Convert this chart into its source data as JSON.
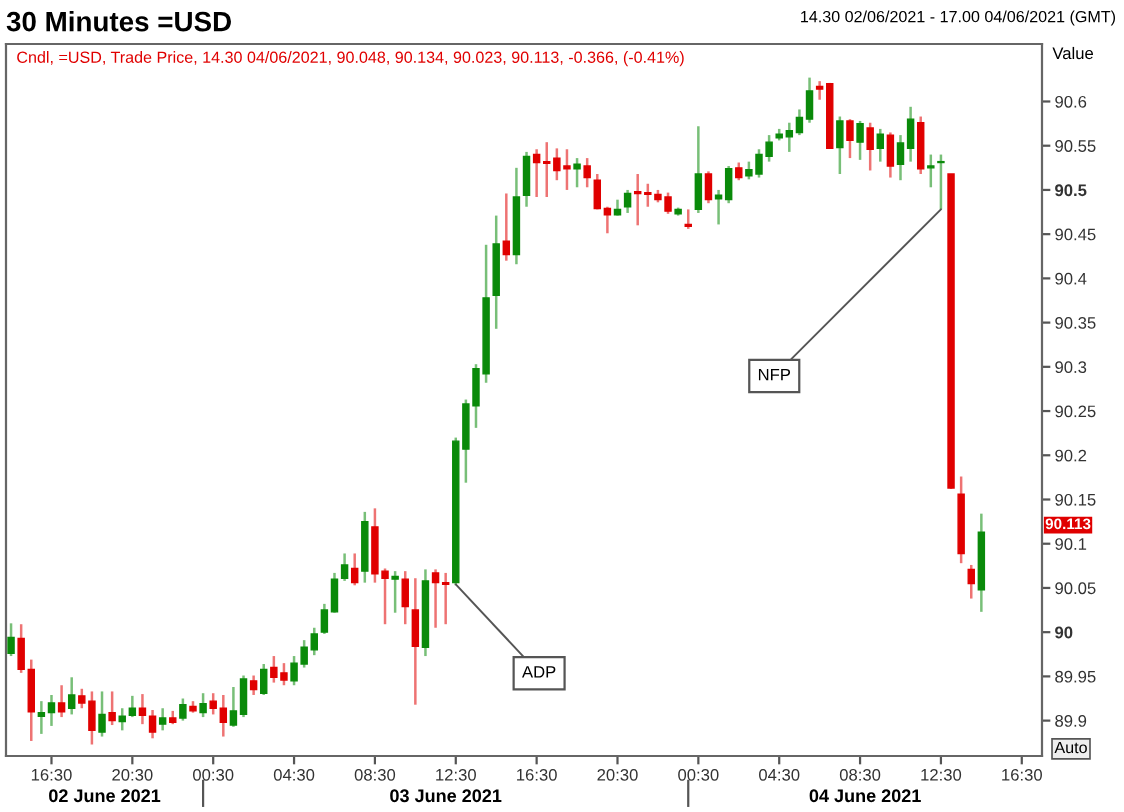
{
  "chart_data": {
    "type": "candlestick",
    "title": "30 Minutes =USD",
    "subtitle": "Cndl, =USD, Trade Price, 14.30 04/06/2021, 90.048, 90.134, 90.023, 90.113, -0.366, (-0.41%)",
    "ylabel": "Value",
    "x": [
      "2021-06-02T14:30",
      "2021-06-02T15:00",
      "2021-06-02T15:30",
      "2021-06-02T16:00",
      "2021-06-02T16:30",
      "2021-06-02T17:00",
      "2021-06-02T17:30",
      "2021-06-02T18:00",
      "2021-06-02T18:30",
      "2021-06-02T19:00",
      "2021-06-02T19:30",
      "2021-06-02T20:00",
      "2021-06-02T20:30",
      "2021-06-02T21:00",
      "2021-06-02T21:30",
      "2021-06-02T22:00",
      "2021-06-02T22:30",
      "2021-06-02T23:00",
      "2021-06-02T23:30",
      "2021-06-03T00:00",
      "2021-06-03T00:30",
      "2021-06-03T01:00",
      "2021-06-03T01:30",
      "2021-06-03T02:00",
      "2021-06-03T02:30",
      "2021-06-03T03:00",
      "2021-06-03T03:30",
      "2021-06-03T04:00",
      "2021-06-03T04:30",
      "2021-06-03T05:00",
      "2021-06-03T05:30",
      "2021-06-03T06:00",
      "2021-06-03T06:30",
      "2021-06-03T07:00",
      "2021-06-03T07:30",
      "2021-06-03T08:00",
      "2021-06-03T08:30",
      "2021-06-03T09:00",
      "2021-06-03T09:30",
      "2021-06-03T10:00",
      "2021-06-03T10:30",
      "2021-06-03T11:00",
      "2021-06-03T11:30",
      "2021-06-03T12:00",
      "2021-06-03T12:30",
      "2021-06-03T13:00",
      "2021-06-03T13:30",
      "2021-06-03T14:00",
      "2021-06-03T14:30",
      "2021-06-03T15:00",
      "2021-06-03T15:30",
      "2021-06-03T16:00",
      "2021-06-03T16:30",
      "2021-06-03T17:00",
      "2021-06-03T17:30",
      "2021-06-03T18:00",
      "2021-06-03T18:30",
      "2021-06-03T19:00",
      "2021-06-03T19:30",
      "2021-06-03T20:00",
      "2021-06-03T20:30",
      "2021-06-03T21:00",
      "2021-06-03T21:30",
      "2021-06-03T22:00",
      "2021-06-03T22:30",
      "2021-06-03T23:00",
      "2021-06-03T23:30",
      "2021-06-04T00:00",
      "2021-06-04T00:30",
      "2021-06-04T01:00",
      "2021-06-04T01:30",
      "2021-06-04T02:00",
      "2021-06-04T02:30",
      "2021-06-04T03:00",
      "2021-06-04T03:30",
      "2021-06-04T04:00",
      "2021-06-04T04:30",
      "2021-06-04T05:00",
      "2021-06-04T05:30",
      "2021-06-04T06:00",
      "2021-06-04T06:30",
      "2021-06-04T07:00",
      "2021-06-04T07:30",
      "2021-06-04T08:00",
      "2021-06-04T08:30",
      "2021-06-04T09:00",
      "2021-06-04T09:30",
      "2021-06-04T10:00",
      "2021-06-04T10:30",
      "2021-06-04T11:00",
      "2021-06-04T11:30",
      "2021-06-04T12:00",
      "2021-06-04T12:30",
      "2021-06-04T13:00",
      "2021-06-04T13:30",
      "2021-06-04T14:00",
      "2021-06-04T14:30"
    ],
    "ohlc": [
      [
        89.976,
        90.01,
        89.973,
        89.994
      ],
      [
        89.993,
        90.009,
        89.954,
        89.958
      ],
      [
        89.958,
        89.969,
        89.877,
        89.91
      ],
      [
        89.905,
        89.922,
        89.885,
        89.909
      ],
      [
        89.909,
        89.929,
        89.894,
        89.92
      ],
      [
        89.92,
        89.94,
        89.904,
        89.91
      ],
      [
        89.914,
        89.949,
        89.907,
        89.929
      ],
      [
        89.928,
        89.936,
        89.914,
        89.92
      ],
      [
        89.922,
        89.933,
        89.873,
        89.889
      ],
      [
        89.887,
        89.933,
        89.882,
        89.907
      ],
      [
        89.909,
        89.933,
        89.895,
        89.9
      ],
      [
        89.899,
        89.914,
        89.889,
        89.905
      ],
      [
        89.906,
        89.928,
        89.904,
        89.914
      ],
      [
        89.914,
        89.93,
        89.896,
        89.906
      ],
      [
        89.905,
        89.912,
        89.88,
        89.887
      ],
      [
        89.896,
        89.914,
        89.889,
        89.903
      ],
      [
        89.903,
        89.911,
        89.896,
        89.898
      ],
      [
        89.903,
        89.925,
        89.9,
        89.918
      ],
      [
        89.916,
        89.922,
        89.909,
        89.911
      ],
      [
        89.909,
        89.931,
        89.904,
        89.919
      ],
      [
        89.922,
        89.931,
        89.907,
        89.914
      ],
      [
        89.914,
        89.929,
        89.882,
        89.898
      ],
      [
        89.895,
        89.938,
        89.893,
        89.911
      ],
      [
        89.907,
        89.951,
        89.904,
        89.947
      ],
      [
        89.945,
        89.951,
        89.929,
        89.935
      ],
      [
        89.931,
        89.964,
        89.929,
        89.958
      ],
      [
        89.96,
        89.973,
        89.943,
        89.949
      ],
      [
        89.954,
        89.965,
        89.94,
        89.946
      ],
      [
        89.945,
        89.973,
        89.94,
        89.965
      ],
      [
        89.964,
        89.991,
        89.96,
        89.983
      ],
      [
        89.98,
        90.005,
        89.974,
        89.998
      ],
      [
        90.0,
        90.032,
        89.998,
        90.025
      ],
      [
        90.023,
        90.067,
        90.022,
        90.06
      ],
      [
        90.061,
        90.089,
        90.058,
        90.076
      ],
      [
        90.072,
        90.089,
        90.053,
        90.056
      ],
      [
        90.069,
        90.136,
        90.056,
        90.125
      ],
      [
        90.119,
        90.14,
        90.056,
        90.066
      ],
      [
        90.069,
        90.072,
        90.009,
        90.061
      ],
      [
        90.06,
        90.069,
        90.022,
        90.063
      ],
      [
        90.06,
        90.069,
        90.009,
        90.029
      ],
      [
        90.025,
        90.061,
        89.918,
        89.984
      ],
      [
        89.983,
        90.071,
        89.973,
        90.058
      ],
      [
        90.067,
        90.071,
        90.005,
        90.056
      ],
      [
        90.056,
        90.067,
        90.009,
        90.054
      ],
      [
        90.056,
        90.22,
        90.053,
        90.216
      ],
      [
        90.207,
        90.263,
        90.169,
        90.258
      ],
      [
        90.256,
        90.303,
        90.231,
        90.298
      ],
      [
        90.292,
        90.438,
        90.282,
        90.378
      ],
      [
        90.381,
        90.471,
        90.343,
        90.439
      ],
      [
        90.442,
        90.496,
        90.42,
        90.427
      ],
      [
        90.427,
        90.525,
        90.416,
        90.492
      ],
      [
        90.494,
        90.543,
        90.481,
        90.538
      ],
      [
        90.54,
        90.546,
        90.492,
        90.531
      ],
      [
        90.532,
        90.554,
        90.492,
        90.53
      ],
      [
        90.536,
        90.547,
        90.511,
        90.522
      ],
      [
        90.527,
        90.546,
        90.5,
        90.524
      ],
      [
        90.524,
        90.536,
        90.503,
        90.529
      ],
      [
        90.527,
        90.536,
        90.503,
        90.514
      ],
      [
        90.511,
        90.518,
        90.478,
        90.479
      ],
      [
        90.479,
        90.481,
        90.451,
        90.472
      ],
      [
        90.472,
        90.489,
        90.471,
        90.478
      ],
      [
        90.481,
        90.5,
        90.474,
        90.496
      ],
      [
        90.498,
        90.518,
        90.46,
        90.496
      ],
      [
        90.497,
        90.507,
        90.481,
        90.495
      ],
      [
        90.495,
        90.5,
        90.486,
        90.489
      ],
      [
        90.492,
        90.497,
        90.473,
        90.476
      ],
      [
        90.473,
        90.48,
        90.471,
        90.478
      ],
      [
        90.461,
        90.478,
        90.456,
        90.459
      ],
      [
        90.478,
        90.572,
        90.474,
        90.518
      ],
      [
        90.518,
        90.521,
        90.485,
        90.489
      ],
      [
        90.49,
        90.5,
        90.461,
        90.494
      ],
      [
        90.489,
        90.527,
        90.485,
        90.524
      ],
      [
        90.525,
        90.531,
        90.511,
        90.514
      ],
      [
        90.516,
        90.532,
        90.512,
        90.523
      ],
      [
        90.518,
        90.546,
        90.514,
        90.54
      ],
      [
        90.538,
        90.562,
        90.532,
        90.554
      ],
      [
        90.559,
        90.569,
        90.556,
        90.563
      ],
      [
        90.56,
        90.576,
        90.543,
        90.567
      ],
      [
        90.565,
        90.591,
        90.562,
        90.582
      ],
      [
        90.58,
        90.627,
        90.576,
        90.612
      ],
      [
        90.617,
        90.623,
        90.602,
        90.614
      ],
      [
        90.62,
        90.621,
        90.547,
        90.547
      ],
      [
        90.548,
        90.583,
        90.518,
        90.578
      ],
      [
        90.578,
        90.58,
        90.536,
        90.556
      ],
      [
        90.554,
        90.578,
        90.534,
        90.575
      ],
      [
        90.57,
        90.576,
        90.522,
        90.546
      ],
      [
        90.547,
        90.569,
        90.532,
        90.563
      ],
      [
        90.562,
        90.565,
        90.514,
        90.527
      ],
      [
        90.529,
        90.562,
        90.511,
        90.553
      ],
      [
        90.547,
        90.594,
        90.532,
        90.58
      ],
      [
        90.576,
        90.583,
        90.518,
        90.524
      ],
      [
        90.525,
        90.54,
        90.503,
        90.527
      ],
      [
        90.531,
        90.54,
        90.478,
        90.532
      ],
      [
        90.518,
        90.518,
        90.162,
        90.163
      ],
      [
        90.156,
        90.176,
        90.078,
        90.089
      ],
      [
        90.071,
        90.076,
        90.038,
        90.055
      ],
      [
        90.048,
        90.134,
        90.023,
        90.113
      ]
    ],
    "colors": [
      "#0a8a0a",
      "#e00000",
      "#e00000",
      "#0a8a0a",
      "#0a8a0a",
      "#e00000",
      "#0a8a0a",
      "#e00000",
      "#e00000",
      "#0a8a0a",
      "#e00000",
      "#0a8a0a",
      "#0a8a0a",
      "#e00000",
      "#e00000",
      "#0a8a0a",
      "#e00000",
      "#0a8a0a",
      "#e00000",
      "#0a8a0a",
      "#e00000",
      "#e00000",
      "#0a8a0a",
      "#0a8a0a",
      "#e00000",
      "#0a8a0a",
      "#e00000",
      "#e00000",
      "#0a8a0a",
      "#0a8a0a",
      "#0a8a0a",
      "#0a8a0a",
      "#0a8a0a",
      "#0a8a0a",
      "#e00000",
      "#0a8a0a",
      "#e00000",
      "#e00000",
      "#0a8a0a",
      "#e00000",
      "#e00000",
      "#0a8a0a",
      "#e00000",
      "#e00000",
      "#0a8a0a",
      "#0a8a0a",
      "#0a8a0a",
      "#0a8a0a",
      "#0a8a0a",
      "#e00000",
      "#0a8a0a",
      "#0a8a0a",
      "#e00000",
      "#e00000",
      "#e00000",
      "#e00000",
      "#0a8a0a",
      "#e00000",
      "#e00000",
      "#e00000",
      "#0a8a0a",
      "#0a8a0a",
      "#e00000",
      "#e00000",
      "#e00000",
      "#e00000",
      "#0a8a0a",
      "#e00000",
      "#0a8a0a",
      "#e00000",
      "#0a8a0a",
      "#0a8a0a",
      "#e00000",
      "#0a8a0a",
      "#0a8a0a",
      "#0a8a0a",
      "#0a8a0a",
      "#0a8a0a",
      "#0a8a0a",
      "#0a8a0a",
      "#e00000",
      "#e00000",
      "#0a8a0a",
      "#e00000",
      "#0a8a0a",
      "#e00000",
      "#0a8a0a",
      "#e00000",
      "#0a8a0a",
      "#0a8a0a",
      "#e00000",
      "#0a8a0a",
      "#0a8a0a",
      "#e00000",
      "#e00000",
      "#e00000",
      "#0a8a0a"
    ],
    "xlim": [
      "2021-06-02T14:15",
      "2021-06-04T17:30"
    ],
    "xticks": [
      {
        "value": "2021-06-02T16:30",
        "label": "16:30"
      },
      {
        "value": "2021-06-02T20:30",
        "label": "20:30"
      },
      {
        "value": "2021-06-03T00:30",
        "label": "00:30"
      },
      {
        "value": "2021-06-03T04:30",
        "label": "04:30"
      },
      {
        "value": "2021-06-03T08:30",
        "label": "08:30"
      },
      {
        "value": "2021-06-03T12:30",
        "label": "12:30"
      },
      {
        "value": "2021-06-03T16:30",
        "label": "16:30"
      },
      {
        "value": "2021-06-03T20:30",
        "label": "20:30"
      },
      {
        "value": "2021-06-04T00:30",
        "label": "00:30"
      },
      {
        "value": "2021-06-04T04:30",
        "label": "04:30"
      },
      {
        "value": "2021-06-04T08:30",
        "label": "08:30"
      },
      {
        "value": "2021-06-04T12:30",
        "label": "12:30"
      },
      {
        "value": "2021-06-04T16:30",
        "label": "16:30"
      }
    ],
    "ylim": [
      89.86,
      90.665
    ],
    "yticks": [
      89.9,
      89.95,
      90,
      90.05,
      90.1,
      90.15,
      90.2,
      90.25,
      90.3,
      90.35,
      90.4,
      90.45,
      90.5,
      90.55,
      90.6
    ],
    "annotations": [
      {
        "text": "ADP",
        "x": "2021-06-03T12:30",
        "y": 90.054
      },
      {
        "text": "NFP",
        "x": "2021-06-04T12:30",
        "y": 90.478
      },
      "02 June 2021",
      "03 June 2021",
      "04 June 2021",
      "14.30 02/06/2021 - 17.00 04/06/2021 (GMT)",
      "Auto",
      "90.113"
    ],
    "grid": false,
    "legend": false
  }
}
